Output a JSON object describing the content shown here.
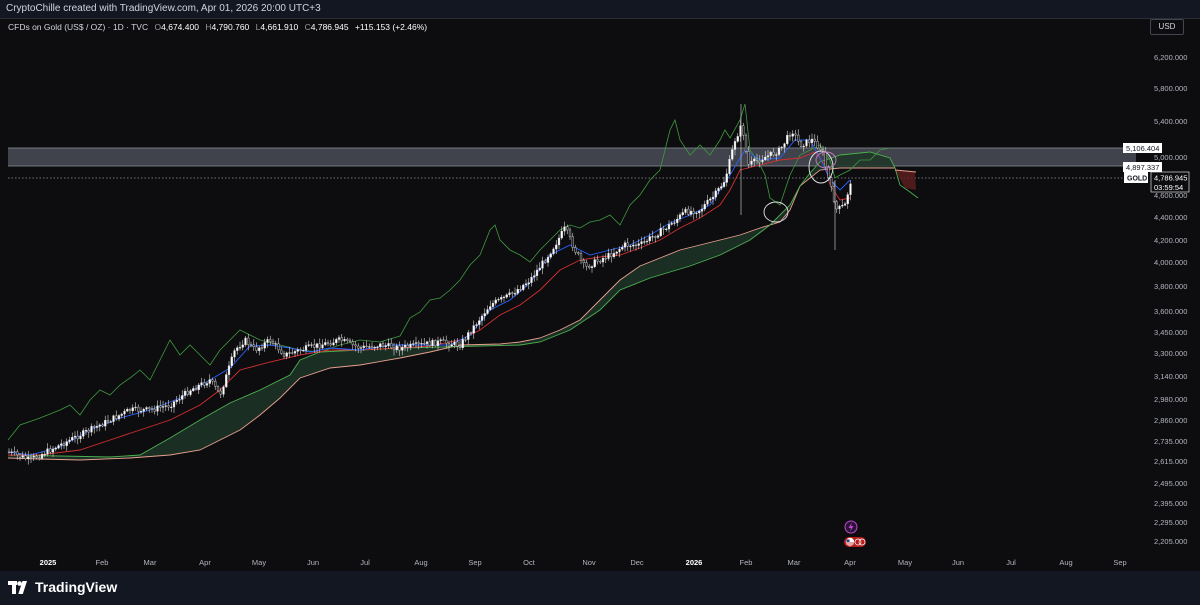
{
  "credit": "CryptoChille created with TradingView.com, Apr 01, 2026 20:00 UTC+3",
  "symbol": {
    "name": "CFDs on Gold (US$ / OZ) · 1D · TVC",
    "o_label": "O",
    "o": "4,674.400",
    "h_label": "H",
    "h": "4,790.760",
    "l_label": "L",
    "l": "4,661.910",
    "c_label": "C",
    "c": "4,786.945",
    "change": "+115.153 (+2.46%)"
  },
  "currency": "USD",
  "price_axis": [
    "6,200.000",
    "5,800.000",
    "5,400.000",
    "5,000.000",
    "4,600.000",
    "4,400.000",
    "4,200.000",
    "4,000.000",
    "3,800.000",
    "3,600.000",
    "3,450.000",
    "3,300.000",
    "3,140.000",
    "2,980.000",
    "2,860.000",
    "2,735.000",
    "2,615.000",
    "2,495.000",
    "2,395.000",
    "2,295.000",
    "2,205.000"
  ],
  "price_labels": {
    "zone_top": "5,106.404",
    "zone_bottom": "4,897.337",
    "ticker": "GOLD",
    "last": "4,786.945",
    "countdown": "03:59:54"
  },
  "time_axis": [
    "2025",
    "Feb",
    "Mar",
    "Apr",
    "May",
    "Jun",
    "Jul",
    "Aug",
    "Sep",
    "Oct",
    "Nov",
    "Dec",
    "2026",
    "Feb",
    "Mar",
    "Apr",
    "May",
    "Jun",
    "Jul",
    "Aug",
    "Sep"
  ],
  "bold_time_labels": [
    "2025",
    "2026"
  ],
  "brand": "TradingView",
  "icons": [
    "lightning-icon",
    "us-flag-icon"
  ],
  "colors": {
    "background": "#0d0d10",
    "candle_up": "#ffffff",
    "candle_down": "#1e1e1e",
    "tenkan": "#2962ff",
    "kijun": "#d32f2f",
    "lagging_span": "#3f9a3f",
    "cloud": "#1e3528",
    "span_a": "#4caf50",
    "span_b": "#e8a08f",
    "zone": "#4a4d57"
  },
  "chart_data": {
    "type": "candlestick",
    "symbol": "GOLD",
    "interval": "1D",
    "series": [
      {
        "name": "price",
        "x": [
          "2025-01",
          "2025-02",
          "2025-03",
          "2025-04",
          "2025-05",
          "2025-06",
          "2025-07",
          "2025-08",
          "2025-09",
          "2025-10",
          "2025-11",
          "2025-12",
          "2026-01",
          "2026-02",
          "2026-03",
          "2026-04"
        ],
        "close": [
          2700,
          2860,
          3050,
          3300,
          3350,
          3400,
          3350,
          3380,
          3700,
          4100,
          4050,
          4200,
          4500,
          5050,
          4400,
          4787
        ]
      }
    ],
    "zone": [
      4897.337,
      5106.404
    ],
    "last_price": 4786.945
  }
}
